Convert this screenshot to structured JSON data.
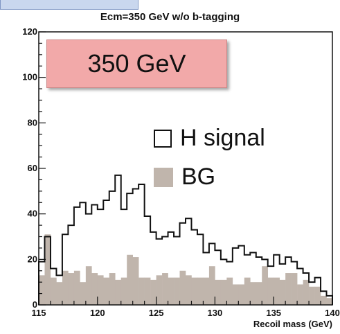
{
  "chart_data": {
    "type": "histogram",
    "title": "Ecm=350 GeV w/o b-tagging",
    "xlabel": "Recoil mass (GeV)",
    "ylabel": "",
    "xlim": [
      115,
      140
    ],
    "ylim": [
      0,
      120
    ],
    "bin_width": 0.5,
    "x_ticks": [
      115,
      120,
      125,
      130,
      135,
      140
    ],
    "y_ticks": [
      0,
      20,
      40,
      60,
      80,
      100,
      120
    ],
    "annotation": "350 GeV",
    "series": [
      {
        "name": "H signal",
        "style": "open",
        "color": "#111111",
        "values": [
          19,
          30,
          16,
          13,
          31,
          35,
          43,
          45,
          40,
          44,
          42,
          46,
          50,
          57,
          42,
          49,
          51,
          53,
          39,
          32,
          29,
          30,
          32,
          30,
          36,
          38,
          33,
          31,
          23,
          27,
          24,
          20,
          19,
          25,
          26,
          22,
          23,
          21,
          20,
          17,
          22,
          18,
          21,
          19,
          16,
          14,
          10,
          12,
          6,
          4
        ]
      },
      {
        "name": "BG",
        "style": "filled",
        "color": "#c0b5ac",
        "values": [
          13,
          31,
          12,
          10,
          15,
          14,
          15,
          10,
          17,
          14,
          13,
          12,
          14,
          11,
          12,
          22,
          21,
          12,
          12,
          11,
          13,
          14,
          12,
          12,
          15,
          13,
          12,
          12,
          12,
          17,
          11,
          11,
          12,
          9,
          9,
          12,
          10,
          10,
          17,
          12,
          12,
          11,
          14,
          14,
          9,
          11,
          8,
          8,
          4,
          3
        ]
      }
    ]
  }
}
